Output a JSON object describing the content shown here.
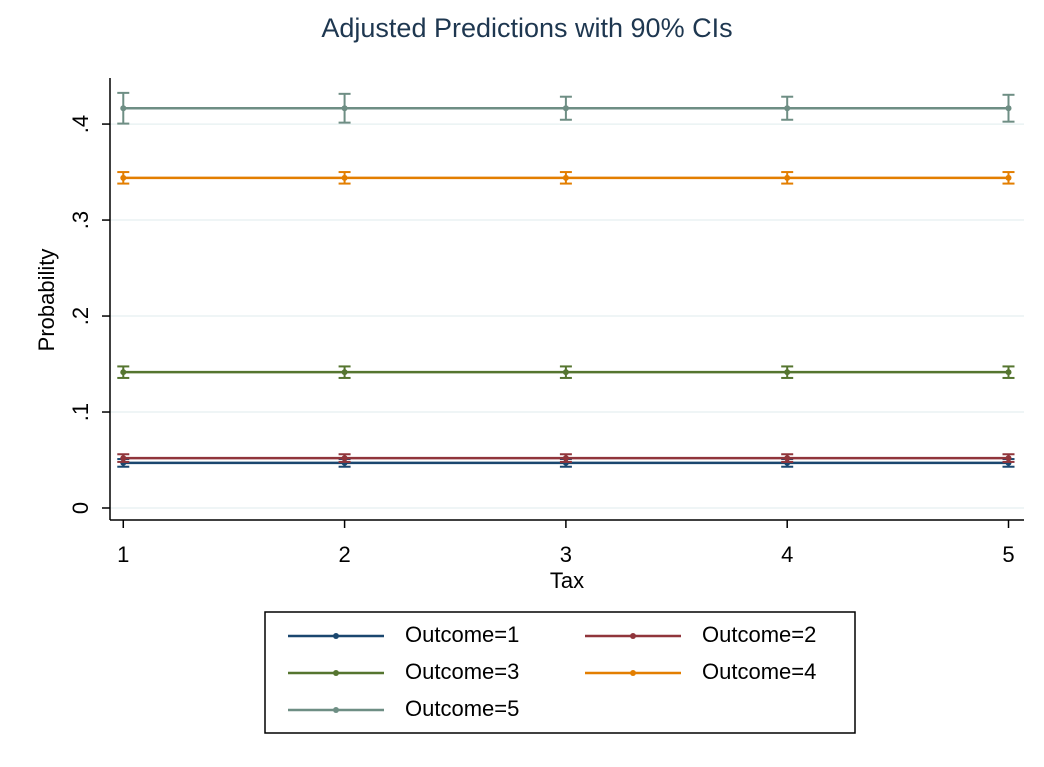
{
  "chart_data": {
    "type": "line",
    "title": "Adjusted Predictions with 90% CIs",
    "x_label": "Tax",
    "y_label": "Probability",
    "x": [
      1,
      2,
      3,
      4,
      5
    ],
    "xlim": [
      0.94,
      5.07
    ],
    "xticks": [
      1,
      2,
      3,
      4,
      5
    ],
    "ylim": [
      -0.0125,
      0.448
    ],
    "yticks": [
      0,
      {
        "value": 0.1,
        "label": ".1"
      },
      {
        "value": 0.2,
        "label": ".2"
      },
      {
        "value": 0.3,
        "label": ".3"
      },
      {
        "value": 0.4,
        "label": ".4"
      }
    ],
    "grid": true,
    "series": [
      {
        "name": "Outcome=1",
        "color": "#1a476f",
        "values": [
          0.047,
          0.047,
          0.047,
          0.047,
          0.047
        ],
        "errors": [
          0.004,
          0.004,
          0.004,
          0.004,
          0.004
        ]
      },
      {
        "name": "Outcome=2",
        "color": "#90353b",
        "values": [
          0.052,
          0.052,
          0.052,
          0.052,
          0.052
        ],
        "errors": [
          0.004,
          0.004,
          0.004,
          0.004,
          0.004
        ]
      },
      {
        "name": "Outcome=3",
        "color": "#55752f",
        "values": [
          0.1415,
          0.1415,
          0.1415,
          0.1415,
          0.1415
        ],
        "errors": [
          0.006,
          0.006,
          0.006,
          0.006,
          0.006
        ]
      },
      {
        "name": "Outcome=4",
        "color": "#e37e00",
        "values": [
          0.344,
          0.344,
          0.344,
          0.344,
          0.344
        ],
        "errors": [
          0.006,
          0.006,
          0.006,
          0.006,
          0.006
        ]
      },
      {
        "name": "Outcome=5",
        "color": "#6e8e84",
        "values": [
          0.4165,
          0.4165,
          0.4165,
          0.4165,
          0.4165
        ],
        "errors": [
          0.016,
          0.015,
          0.012,
          0.012,
          0.014
        ]
      }
    ]
  }
}
